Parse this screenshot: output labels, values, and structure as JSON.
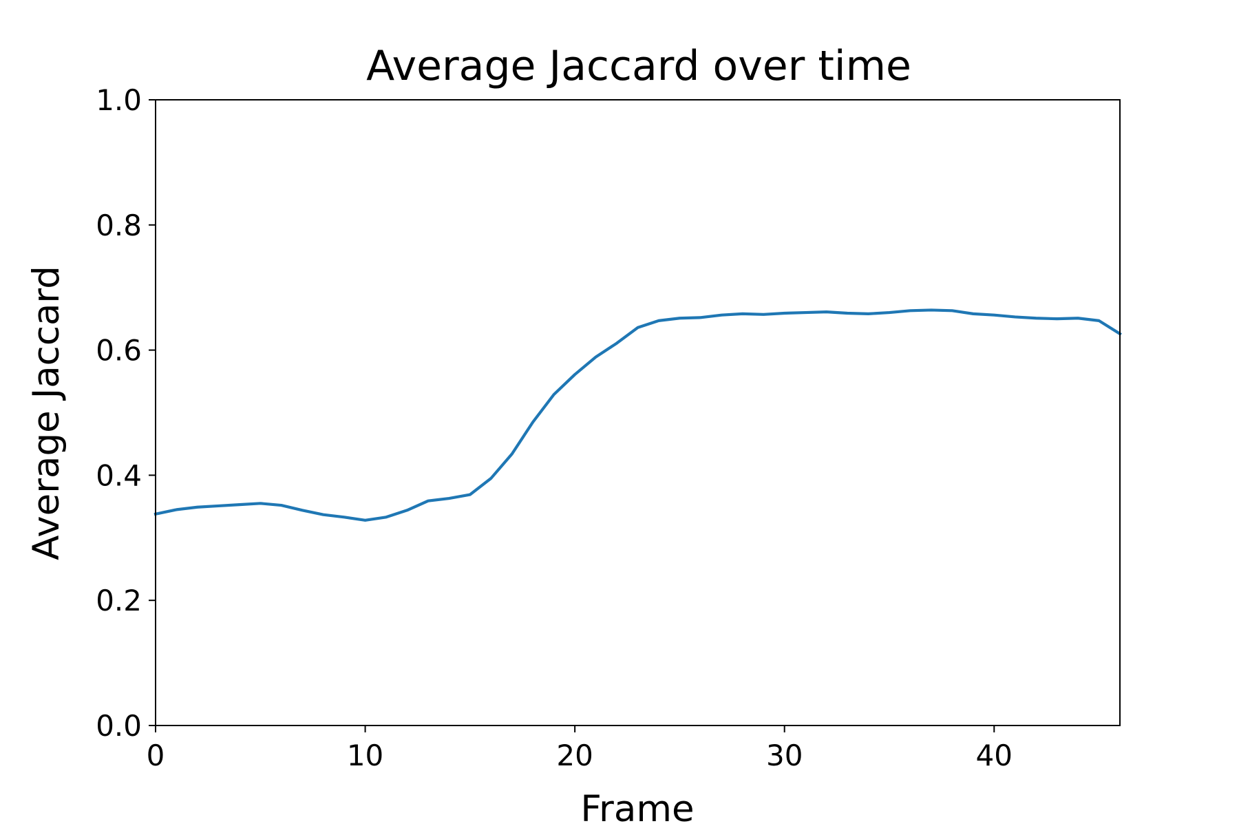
{
  "chart_data": {
    "type": "line",
    "title": "Average Jaccard over time",
    "xlabel": "Frame",
    "ylabel": "Average Jaccard",
    "xlim": [
      0,
      46
    ],
    "ylim": [
      0.0,
      1.0
    ],
    "x_ticks": [
      0,
      10,
      20,
      30,
      40
    ],
    "x_tick_labels": [
      "0",
      "10",
      "20",
      "30",
      "40"
    ],
    "y_ticks": [
      0.0,
      0.2,
      0.4,
      0.6,
      0.8,
      1.0
    ],
    "y_tick_labels": [
      "0.0",
      "0.2",
      "0.4",
      "0.6",
      "0.8",
      "1.0"
    ],
    "grid": false,
    "series": [
      {
        "color": "#1f77b4",
        "x": [
          0,
          1,
          2,
          3,
          4,
          5,
          6,
          7,
          8,
          9,
          10,
          11,
          12,
          13,
          14,
          15,
          16,
          17,
          18,
          19,
          20,
          21,
          22,
          23,
          24,
          25,
          26,
          27,
          28,
          29,
          30,
          31,
          32,
          33,
          34,
          35,
          36,
          37,
          38,
          39,
          40,
          41,
          42,
          43,
          44,
          45,
          46
        ],
        "y": [
          0.338,
          0.345,
          0.349,
          0.351,
          0.353,
          0.355,
          0.352,
          0.344,
          0.337,
          0.333,
          0.328,
          0.333,
          0.344,
          0.359,
          0.363,
          0.369,
          0.395,
          0.434,
          0.485,
          0.529,
          0.561,
          0.589,
          0.611,
          0.636,
          0.647,
          0.651,
          0.652,
          0.656,
          0.658,
          0.657,
          0.659,
          0.66,
          0.661,
          0.659,
          0.658,
          0.66,
          0.663,
          0.664,
          0.663,
          0.658,
          0.656,
          0.653,
          0.651,
          0.65,
          0.651,
          0.647,
          0.626
        ]
      }
    ]
  }
}
